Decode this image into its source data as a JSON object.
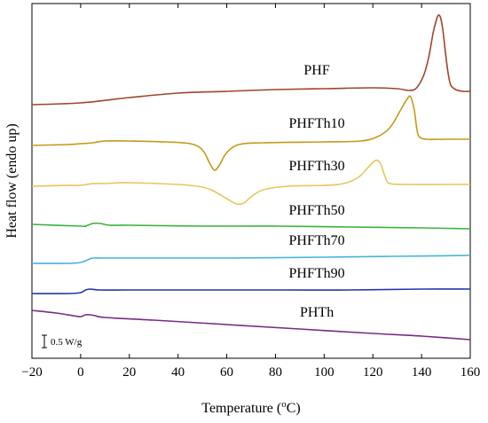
{
  "chart_data": {
    "type": "line",
    "xlabel": "Temperature (°C)",
    "xlabel_main": "Temperature (",
    "xlabel_sup": "o",
    "xlabel_end": "C)",
    "ylabel": "Heat flow (endo up)",
    "xlim": [
      -20,
      160
    ],
    "xticks": [
      "−20",
      "0",
      "20",
      "40",
      "60",
      "80",
      "100",
      "120",
      "140",
      "160"
    ],
    "xtick_values": [
      -20,
      0,
      20,
      40,
      60,
      80,
      100,
      120,
      140,
      160
    ],
    "scale_bar": "0.5 W/g",
    "series": [
      {
        "name": "PHF",
        "color": "#a0452a",
        "label_at": [
          97,
          80
        ],
        "points": [
          [
            -20,
            114
          ],
          [
            0,
            112
          ],
          [
            20,
            106
          ],
          [
            40,
            101
          ],
          [
            60,
            99
          ],
          [
            80,
            97
          ],
          [
            100,
            96
          ],
          [
            120,
            95
          ],
          [
            130,
            96
          ],
          [
            135,
            98
          ],
          [
            138,
            95
          ],
          [
            141,
            80
          ],
          [
            143,
            60
          ],
          [
            145,
            30
          ],
          [
            147,
            13
          ],
          [
            148.5,
            25
          ],
          [
            150,
            60
          ],
          [
            151,
            80
          ],
          [
            152,
            92
          ],
          [
            154,
            97
          ],
          [
            157,
            99
          ],
          [
            160,
            99
          ]
        ]
      },
      {
        "name": "PHFTh10",
        "color": "#c49a19",
        "label_at": [
          97,
          140
        ],
        "points": [
          [
            -20,
            160
          ],
          [
            -5,
            159
          ],
          [
            0,
            158
          ],
          [
            5,
            157
          ],
          [
            10,
            155
          ],
          [
            20,
            155
          ],
          [
            35,
            156
          ],
          [
            45,
            158
          ],
          [
            50,
            165
          ],
          [
            53,
            180
          ],
          [
            55,
            188
          ],
          [
            57,
            182
          ],
          [
            60,
            168
          ],
          [
            65,
            159
          ],
          [
            75,
            157
          ],
          [
            100,
            156
          ],
          [
            115,
            155
          ],
          [
            122,
            150
          ],
          [
            127,
            140
          ],
          [
            131,
            122
          ],
          [
            134,
            108
          ],
          [
            135.5,
            105
          ],
          [
            137,
            120
          ],
          [
            138,
            140
          ],
          [
            139,
            150
          ],
          [
            142,
            153
          ],
          [
            150,
            153
          ],
          [
            160,
            153
          ]
        ]
      },
      {
        "name": "PHFTh30",
        "color": "#e8c55c",
        "label_at": [
          97,
          188
        ],
        "points": [
          [
            -20,
            206
          ],
          [
            -5,
            205
          ],
          [
            0,
            205
          ],
          [
            5,
            203
          ],
          [
            10,
            203
          ],
          [
            20,
            202
          ],
          [
            40,
            204
          ],
          [
            50,
            207
          ],
          [
            55,
            212
          ],
          [
            60,
            220
          ],
          [
            64,
            226
          ],
          [
            67,
            225
          ],
          [
            70,
            218
          ],
          [
            75,
            210
          ],
          [
            85,
            206
          ],
          [
            100,
            205
          ],
          [
            108,
            203
          ],
          [
            114,
            196
          ],
          [
            118,
            185
          ],
          [
            121,
            177
          ],
          [
            123,
            180
          ],
          [
            125,
            195
          ],
          [
            127,
            203
          ],
          [
            135,
            204
          ],
          [
            150,
            204
          ],
          [
            160,
            204
          ]
        ]
      },
      {
        "name": "PHFTh50",
        "color": "#39b33a",
        "label_at": [
          97,
          238
        ],
        "points": [
          [
            -20,
            249
          ],
          [
            0,
            251
          ],
          [
            2,
            251
          ],
          [
            5,
            248
          ],
          [
            8,
            248
          ],
          [
            12,
            250
          ],
          [
            20,
            250
          ],
          [
            50,
            251
          ],
          [
            80,
            251
          ],
          [
            110,
            252
          ],
          [
            140,
            253
          ],
          [
            160,
            254
          ]
        ]
      },
      {
        "name": "PHFTh70",
        "color": "#44b4d8",
        "label_at": [
          97,
          272
        ],
        "points": [
          [
            -20,
            293
          ],
          [
            -5,
            293
          ],
          [
            0,
            292
          ],
          [
            3,
            289
          ],
          [
            5,
            287
          ],
          [
            10,
            287
          ],
          [
            30,
            287
          ],
          [
            60,
            287
          ],
          [
            100,
            286
          ],
          [
            130,
            285
          ],
          [
            160,
            284
          ]
        ]
      },
      {
        "name": "PHFTh90",
        "color": "#2436a6",
        "label_at": [
          97,
          309
        ],
        "points": [
          [
            -20,
            327
          ],
          [
            -5,
            327
          ],
          [
            0,
            326
          ],
          [
            2,
            323
          ],
          [
            4,
            322
          ],
          [
            8,
            323
          ],
          [
            20,
            323
          ],
          [
            50,
            323
          ],
          [
            80,
            323
          ],
          [
            110,
            323
          ],
          [
            140,
            322
          ],
          [
            160,
            322
          ]
        ]
      },
      {
        "name": "PHTh",
        "color": "#7a2a86",
        "label_at": [
          97,
          353
        ],
        "points": [
          [
            -20,
            346
          ],
          [
            -10,
            349
          ],
          [
            -3,
            352
          ],
          [
            0,
            353
          ],
          [
            2,
            351
          ],
          [
            4,
            351
          ],
          [
            6,
            352
          ],
          [
            10,
            354
          ],
          [
            30,
            357
          ],
          [
            60,
            362
          ],
          [
            90,
            367
          ],
          [
            120,
            372
          ],
          [
            140,
            375
          ],
          [
            160,
            379
          ]
        ]
      }
    ]
  }
}
